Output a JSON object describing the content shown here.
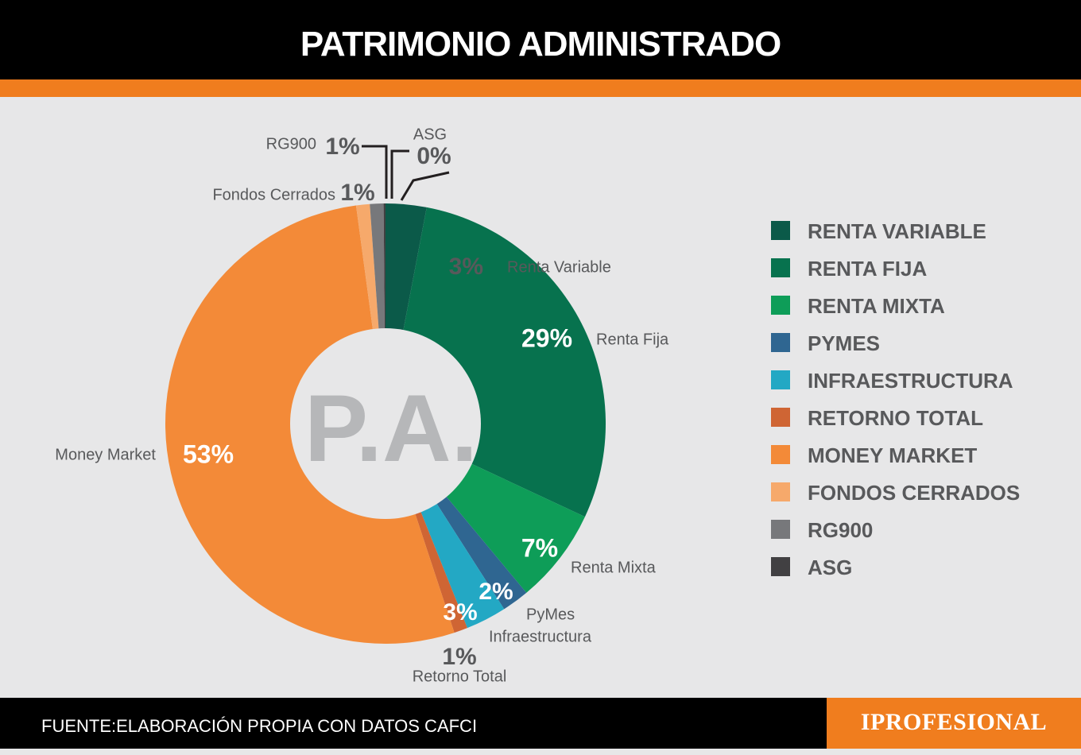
{
  "header": {
    "title": "PATRIMONIO ADMINISTRADO"
  },
  "footer": {
    "source": "FUENTE:ELABORACIÓN PROPIA CON DATOS CAFCI",
    "brand": "IPROFESIONAL"
  },
  "center_text": "P.A.",
  "colors": {
    "header_bg": "#000000",
    "accent": "#f07d1e",
    "background": "#e7e7e8",
    "text": "#58595b"
  },
  "chart_data": {
    "type": "pie",
    "donut": true,
    "unit": "%",
    "legend_placement": "right",
    "categories": [
      "Renta Variable",
      "Renta Fija",
      "Renta Mixta",
      "PyMes",
      "Infraestructura",
      "Retorno Total",
      "Money Market",
      "Fondos Cerrados",
      "RG900",
      "ASG"
    ],
    "values": [
      3,
      29,
      7,
      2,
      3,
      1,
      53,
      1,
      1,
      0
    ],
    "value_labels": [
      "3%",
      "29%",
      "7%",
      "2%",
      "3%",
      "1%",
      "53%",
      "1%",
      "1%",
      "0%"
    ],
    "legend_entries": [
      "RENTA VARIABLE",
      "RENTA FIJA",
      "RENTA MIXTA",
      "PYMES",
      "INFRAESTRUCTURA",
      "RETORNO TOTAL",
      "MONEY MARKET",
      "FONDOS CERRADOS",
      "RG900",
      "ASG"
    ],
    "colors": [
      "#0b5a49",
      "#07724e",
      "#0e9d58",
      "#2f6691",
      "#23a8c4",
      "#cf6534",
      "#f38a38",
      "#f6a96b",
      "#77787b",
      "#414042"
    ]
  }
}
